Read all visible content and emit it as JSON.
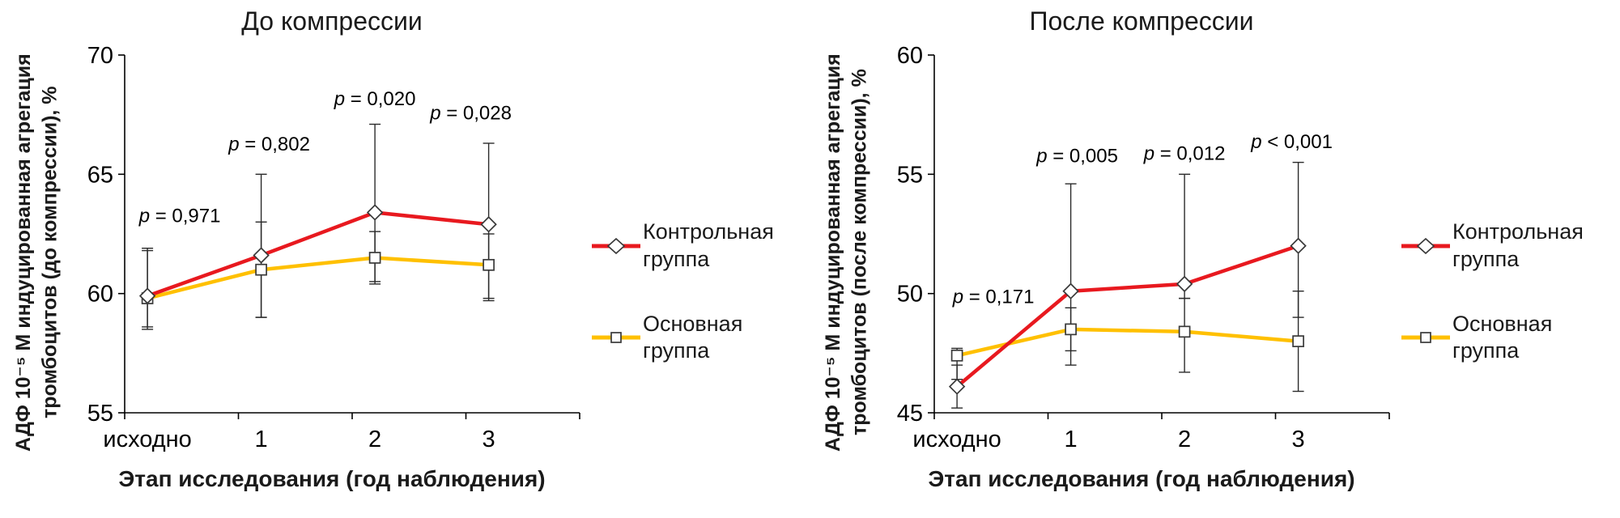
{
  "chart_data": [
    {
      "type": "line",
      "title": "До компрессии",
      "xlabel": "Этап исследования (год наблюдения)",
      "ylabel": "АДФ 10⁻⁵ М индуцированная агрегация тромбоцитов (до компрессии), %",
      "categories": [
        "исходно",
        "1",
        "2",
        "3"
      ],
      "ylim": [
        55,
        70
      ],
      "yticks": [
        55,
        60,
        65,
        70
      ],
      "grid": false,
      "legend_position": "right",
      "series": [
        {
          "name": "Контрольная группа",
          "color": "#e8191f",
          "marker": "diamond",
          "values": [
            59.9,
            61.6,
            63.4,
            62.9
          ],
          "error_low": [
            58.5,
            59.0,
            60.5,
            59.7
          ],
          "error_high": [
            61.9,
            65.0,
            67.1,
            66.3
          ]
        },
        {
          "name": "Основная группа",
          "color": "#ffc000",
          "marker": "square",
          "values": [
            59.8,
            61.0,
            61.5,
            61.2
          ],
          "error_low": [
            58.6,
            59.0,
            60.4,
            59.8
          ],
          "error_high": [
            61.8,
            63.0,
            62.6,
            62.5
          ]
        }
      ],
      "annotations": [
        {
          "text": "p = 0,971",
          "x": 0,
          "y": 63.0,
          "dx": 40
        },
        {
          "text": "p = 0,802",
          "x": 1,
          "y": 66.0,
          "dx": 10
        },
        {
          "text": "p = 0,020",
          "x": 2,
          "y": 67.9,
          "dx": 0
        },
        {
          "text": "p = 0,028",
          "x": 3,
          "y": 67.3,
          "dx": -22
        }
      ]
    },
    {
      "type": "line",
      "title": "После компрессии",
      "xlabel": "Этап исследования (год наблюдения)",
      "ylabel": "АДФ 10⁻⁵ М индуцированная агрегация тромбоцитов (после компрессии), %",
      "categories": [
        "исходно",
        "1",
        "2",
        "3"
      ],
      "ylim": [
        45,
        60
      ],
      "yticks": [
        45,
        50,
        55,
        60
      ],
      "grid": false,
      "legend_position": "right",
      "series": [
        {
          "name": "Контрольная группа",
          "color": "#e8191f",
          "marker": "diamond",
          "values": [
            46.1,
            50.1,
            50.4,
            52.0
          ],
          "error_low": [
            45.2,
            47.0,
            49.8,
            49.0
          ],
          "error_high": [
            47.0,
            54.6,
            55.0,
            55.5
          ]
        },
        {
          "name": "Основная группа",
          "color": "#ffc000",
          "marker": "square",
          "values": [
            47.4,
            48.5,
            48.4,
            48.0
          ],
          "error_low": [
            46.4,
            47.6,
            46.7,
            45.9
          ],
          "error_high": [
            47.7,
            49.4,
            49.8,
            50.1
          ]
        }
      ],
      "annotations": [
        {
          "text": "p = 0,171",
          "x": 0,
          "y": 49.6,
          "dx": 45
        },
        {
          "text": "p = 0,005",
          "x": 1,
          "y": 55.5,
          "dx": 8
        },
        {
          "text": "p = 0,012",
          "x": 2,
          "y": 55.6,
          "dx": 0
        },
        {
          "text": "p < 0,001",
          "x": 3,
          "y": 56.1,
          "dx": -8
        }
      ]
    }
  ],
  "style": {
    "error_bar_color": "#2b2b2b",
    "marker_fill": "#ffffff",
    "marker_stroke": "#3a3a3a",
    "axis_color": "#000000"
  }
}
